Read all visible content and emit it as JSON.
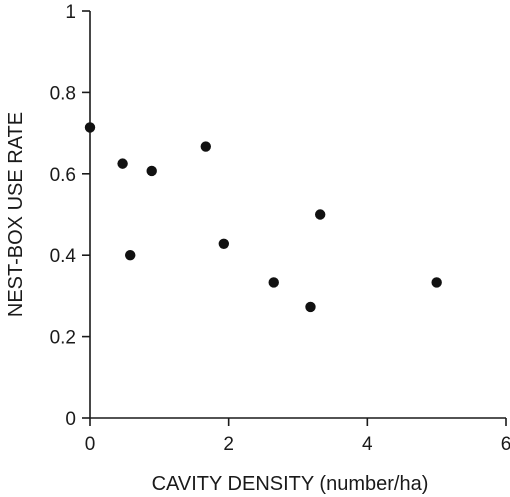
{
  "chart_data": {
    "type": "scatter",
    "title": "",
    "xlabel": "CAVITY DENSITY (number/ha)",
    "ylabel": "NEST-BOX USE RATE",
    "xlim": [
      0,
      6
    ],
    "ylim": [
      0,
      1
    ],
    "xticks": [
      0,
      2,
      4,
      6
    ],
    "xtick_labels": [
      "0",
      "2",
      "4",
      "6"
    ],
    "yticks": [
      0,
      0.2,
      0.4,
      0.6,
      0.8,
      1
    ],
    "ytick_labels": [
      "0",
      "0.2",
      "0.4",
      "0.6",
      "0.8",
      "1"
    ],
    "grid": false,
    "legend": "none",
    "marker_color": "#111111",
    "series": [
      {
        "points": [
          {
            "x": 0.0,
            "y": 0.714
          },
          {
            "x": 0.47,
            "y": 0.625
          },
          {
            "x": 0.58,
            "y": 0.4
          },
          {
            "x": 0.89,
            "y": 0.607
          },
          {
            "x": 1.67,
            "y": 0.667
          },
          {
            "x": 1.93,
            "y": 0.428
          },
          {
            "x": 2.65,
            "y": 0.333
          },
          {
            "x": 3.18,
            "y": 0.273
          },
          {
            "x": 3.32,
            "y": 0.5
          },
          {
            "x": 5.0,
            "y": 0.333
          }
        ]
      }
    ]
  }
}
